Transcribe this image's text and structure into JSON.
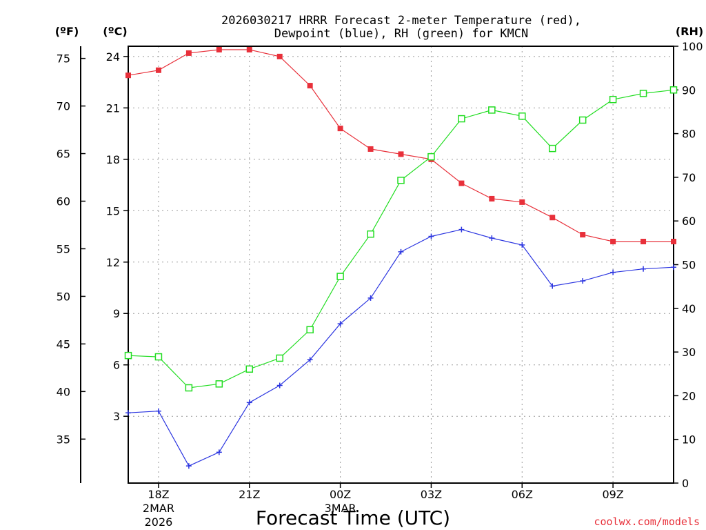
{
  "chart_data": {
    "type": "line",
    "title_line1": "2026030217 HRRR Forecast 2-meter Temperature (red),",
    "title_line2": "Dewpoint (blue), RH (green) for KMCN",
    "xlabel": "Forecast Time (UTC)",
    "credit": "coolwx.com/models",
    "units": {
      "fahrenheit": "(ºF)",
      "celsius": "(ºC)",
      "rh": "(RH)"
    },
    "x": [
      "17Z",
      "18Z",
      "19Z",
      "20Z",
      "21Z",
      "22Z",
      "23Z",
      "00Z",
      "01Z",
      "02Z",
      "03Z",
      "04Z",
      "05Z",
      "06Z",
      "07Z",
      "08Z",
      "09Z",
      "10Z",
      "11Z"
    ],
    "x_ticks": [
      {
        "i": 1,
        "label": "18Z",
        "sub1": "2MAR",
        "sub2": "2026"
      },
      {
        "i": 4,
        "label": "21Z"
      },
      {
        "i": 7,
        "label": "00Z",
        "sub1": "3MAR"
      },
      {
        "i": 10,
        "label": "03Z"
      },
      {
        "i": 13,
        "label": "06Z"
      },
      {
        "i": 16,
        "label": "09Z"
      }
    ],
    "ylim_celsius": [
      -0.9,
      24.6
    ],
    "ylim_rh": [
      0,
      100
    ],
    "celsius_ticks": [
      3,
      6,
      9,
      12,
      15,
      18,
      21,
      24
    ],
    "fahrenheit_ticks": [
      35,
      40,
      45,
      50,
      55,
      60,
      65,
      70,
      75
    ],
    "rh_ticks": [
      0,
      10,
      20,
      30,
      40,
      50,
      60,
      70,
      80,
      90,
      100
    ],
    "grid": true,
    "series": [
      {
        "name": "Temperature",
        "axis": "celsius",
        "color": "#e8303a",
        "marker": "filled-square",
        "values": [
          22.9,
          23.2,
          24.2,
          24.4,
          24.4,
          24.0,
          22.3,
          19.8,
          18.6,
          18.3,
          18.0,
          16.6,
          15.7,
          15.5,
          14.6,
          13.6,
          13.2,
          13.2,
          13.2
        ]
      },
      {
        "name": "Dewpoint",
        "axis": "celsius",
        "color": "#2a34e0",
        "marker": "plus",
        "values": [
          3.2,
          3.3,
          0.1,
          0.9,
          3.8,
          4.8,
          6.3,
          8.4,
          9.9,
          12.6,
          13.5,
          13.9,
          13.4,
          13.0,
          10.6,
          10.9,
          11.4,
          11.6,
          11.7
        ]
      },
      {
        "name": "RH",
        "axis": "rh",
        "color": "#22dd22",
        "marker": "open-square",
        "values": [
          29.2,
          28.9,
          21.8,
          22.7,
          26.1,
          28.6,
          35.1,
          47.3,
          57.0,
          69.3,
          74.7,
          83.4,
          85.4,
          84.0,
          76.6,
          83.1,
          87.8,
          89.2,
          90.0
        ]
      }
    ]
  }
}
